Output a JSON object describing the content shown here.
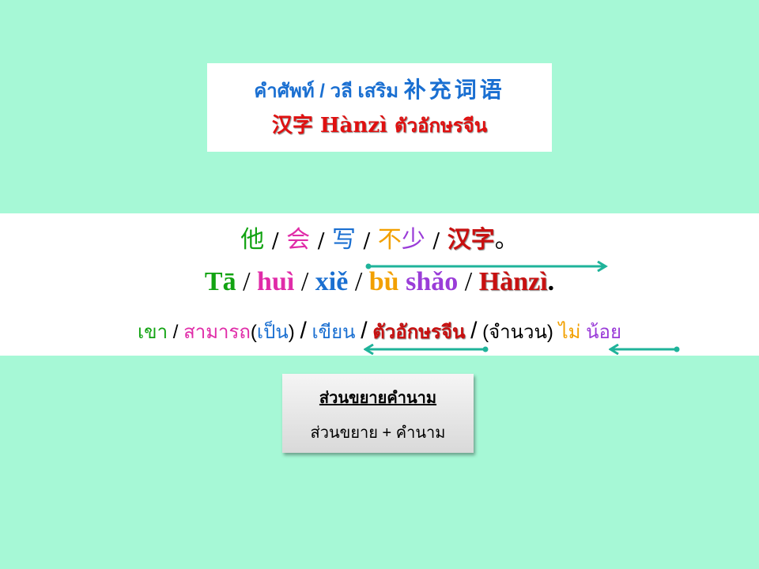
{
  "title": {
    "line1_thai": "คำศัพท์ / วลี เสริม",
    "line1_chinese": "补充词语",
    "line2_hanzi": "汉字 Hànzì",
    "line2_thai": "ตัวอักษรจีน"
  },
  "sentence": {
    "chinese": [
      "他",
      "会",
      "写",
      "不",
      "少",
      "汉字",
      "。"
    ],
    "pinyin": [
      "Tā",
      "huì",
      "xiě",
      "bù",
      "shǎo",
      "Hànzì",
      "."
    ],
    "thai": [
      "เขา",
      "สามารถ",
      "(",
      "เป็น",
      ")",
      "เขียน",
      "ตัวอักษรจีน",
      "(จำนวน)",
      "ไม่",
      "น้อย"
    ],
    "separator": "/"
  },
  "modifier_box": {
    "title": "ส่วนขยายคำนาม",
    "formula": "ส่วนขยาย + คำนาม"
  },
  "colors": {
    "background": "#a6f8d6",
    "arrow": "#1fb39a",
    "green": "#12a312",
    "pink": "#e02ca8",
    "blue": "#1a6fd1",
    "orange": "#f2a000",
    "purple": "#9a3cd8",
    "red": "#c81010"
  }
}
